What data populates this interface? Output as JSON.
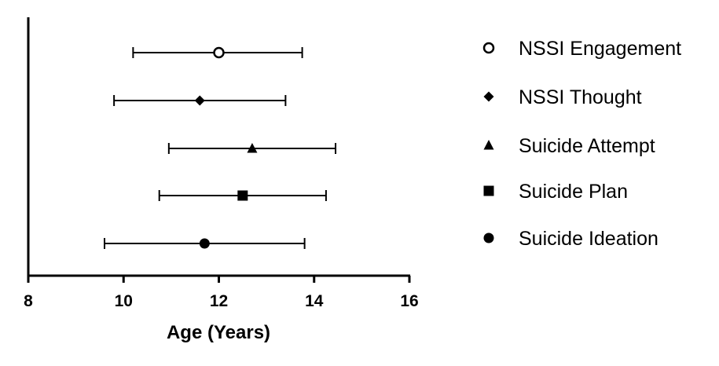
{
  "chart_data": {
    "type": "scatter",
    "xlabel": "Age (Years)",
    "ylabel": "",
    "xlim": [
      8,
      16
    ],
    "xticks": [
      8,
      10,
      12,
      14,
      16
    ],
    "grid": false,
    "legend_position": "right",
    "series": [
      {
        "name": "NSSI Engagement",
        "marker": "circle-open",
        "mean": 12.0,
        "lower": 10.2,
        "upper": 13.75
      },
      {
        "name": "NSSI Thought",
        "marker": "diamond",
        "mean": 11.6,
        "lower": 9.8,
        "upper": 13.4
      },
      {
        "name": "Suicide Attempt",
        "marker": "triangle",
        "mean": 12.7,
        "lower": 10.95,
        "upper": 14.45
      },
      {
        "name": "Suicide Plan",
        "marker": "square",
        "mean": 12.5,
        "lower": 10.75,
        "upper": 14.25
      },
      {
        "name": "Suicide Ideation",
        "marker": "circle",
        "mean": 11.7,
        "lower": 9.6,
        "upper": 13.8
      }
    ]
  }
}
